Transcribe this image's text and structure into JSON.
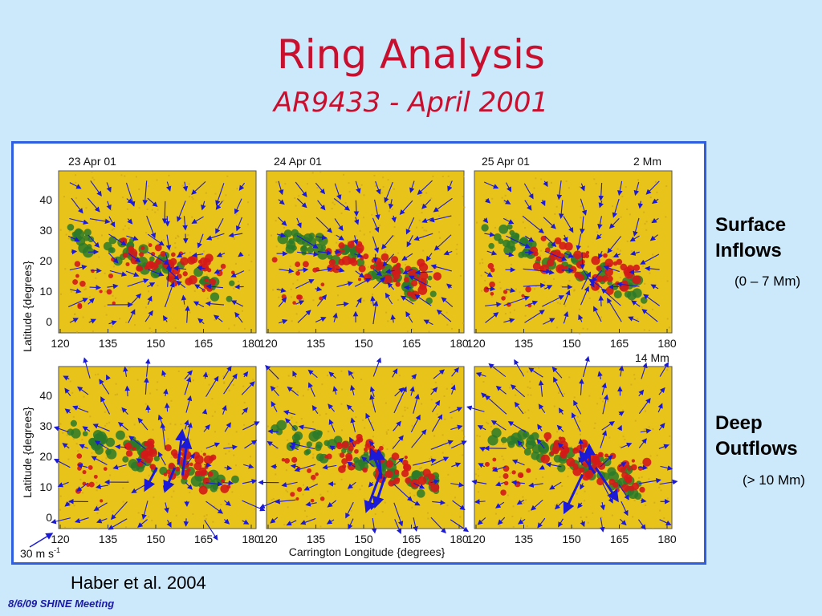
{
  "slide": {
    "title": "Ring Analysis",
    "subtitle": "AR9433 - April 2001",
    "citation": "Haber et al. 2004",
    "footer": "8/6/09 SHINE Meeting"
  },
  "side_labels": {
    "surface": {
      "line1": "Surface",
      "line2": "Inflows",
      "depth": "(0 – 7 Mm)"
    },
    "deep": {
      "line1": "Deep",
      "line2": "Outflows",
      "depth": "(> 10 Mm)"
    }
  },
  "figure": {
    "panel_dates": [
      "23 Apr 01",
      "24 Apr 01",
      "25 Apr 01"
    ],
    "row1_depth": "2 Mm",
    "row2_depth": "14 Mm",
    "y_axis_label": "Latitude {degrees}",
    "x_axis_label": "Carrington Longitude {degrees}",
    "x_ticks": [
      "120",
      "135",
      "150",
      "165",
      "180"
    ],
    "y_ticks": [
      "40",
      "30",
      "20",
      "10",
      "0"
    ],
    "scale_label": "30 m s",
    "scale_exponent": "-1",
    "colors": {
      "background": "#e8c31a",
      "vectors": "#1a1ad8",
      "positive_field": "#d41a1a",
      "negative_field": "#2a7a2a"
    }
  }
}
